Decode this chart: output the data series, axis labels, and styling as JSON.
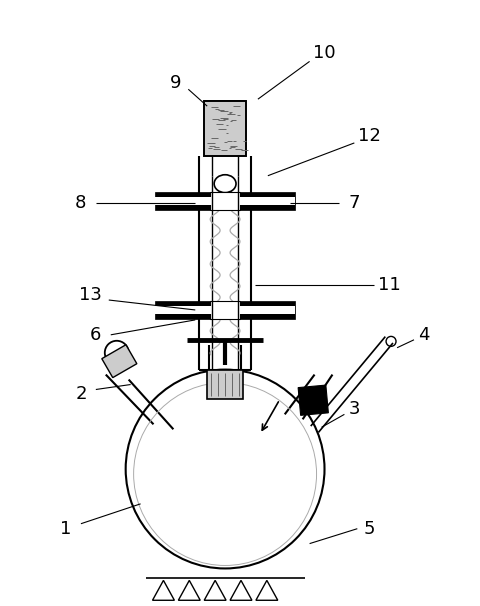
{
  "background_color": "#ffffff",
  "black": "#000000",
  "dgray": "#666666",
  "lgray": "#cccccc",
  "mgray": "#aaaaaa",
  "figsize": [
    4.81,
    6.06
  ],
  "dpi": 100
}
